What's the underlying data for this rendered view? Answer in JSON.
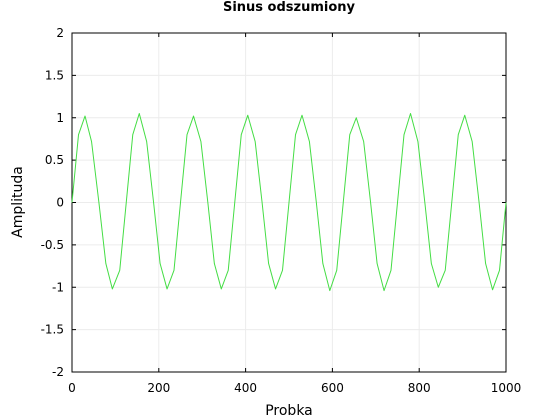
{
  "chart_data": {
    "type": "line",
    "title": "Sinus odszumiony",
    "xlabel": "Probka",
    "ylabel": "Amplituda",
    "xlim": [
      0,
      1000
    ],
    "ylim": [
      -2,
      2
    ],
    "x_ticks": [
      0,
      200,
      400,
      600,
      800,
      1000
    ],
    "y_ticks": [
      -2,
      -1.5,
      -1,
      -0.5,
      0,
      0.5,
      1,
      1.5,
      2
    ],
    "x_tick_labels": [
      "0",
      "200",
      "400",
      "600",
      "800",
      "1000"
    ],
    "y_tick_labels": [
      "-2",
      "-1.5",
      "-1",
      "-0.5",
      "0",
      "0.5",
      "1",
      "1.5",
      "2"
    ],
    "grid": true,
    "legend": "none",
    "series": [
      {
        "color": "#44dd44",
        "x": [
          0,
          15,
          30,
          45,
          62,
          78,
          93,
          110,
          125,
          140,
          155,
          172,
          188,
          203,
          219,
          235,
          250,
          265,
          280,
          297,
          313,
          328,
          344,
          360,
          375,
          390,
          405,
          422,
          438,
          453,
          469,
          485,
          500,
          515,
          530,
          547,
          563,
          578,
          594,
          610,
          625,
          640,
          655,
          672,
          688,
          703,
          719,
          735,
          750,
          765,
          780,
          797,
          813,
          828,
          844,
          860,
          875,
          890,
          905,
          922,
          938,
          953,
          969,
          985,
          1000
        ],
        "y": [
          0.0,
          0.8,
          1.02,
          0.72,
          0.0,
          -0.72,
          -1.02,
          -0.8,
          0.0,
          0.8,
          1.05,
          0.72,
          0.0,
          -0.72,
          -1.02,
          -0.8,
          0.0,
          0.8,
          1.02,
          0.72,
          0.0,
          -0.72,
          -1.02,
          -0.8,
          0.0,
          0.8,
          1.03,
          0.72,
          0.0,
          -0.72,
          -1.02,
          -0.8,
          0.0,
          0.8,
          1.03,
          0.72,
          0.0,
          -0.72,
          -1.04,
          -0.8,
          0.0,
          0.8,
          1.0,
          0.72,
          0.0,
          -0.72,
          -1.04,
          -0.8,
          0.0,
          0.8,
          1.05,
          0.72,
          0.0,
          -0.72,
          -1.0,
          -0.8,
          0.0,
          0.8,
          1.03,
          0.72,
          0.0,
          -0.72,
          -1.03,
          -0.8,
          0.0
        ]
      }
    ]
  }
}
